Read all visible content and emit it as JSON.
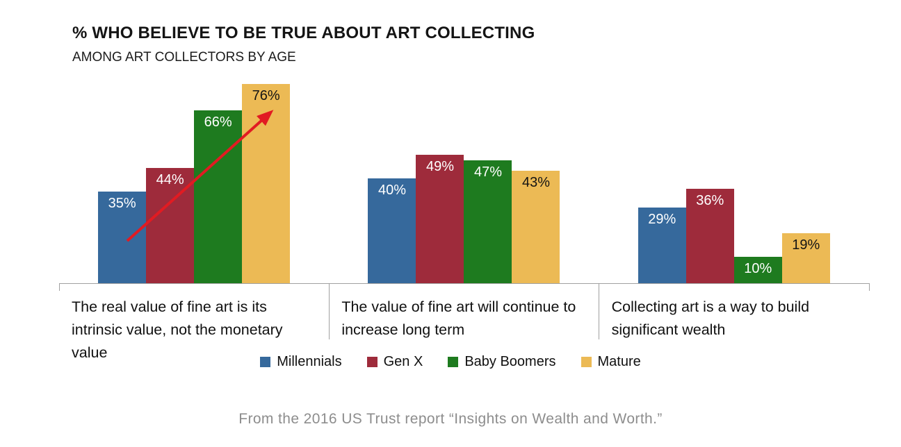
{
  "title": "% WHO BELIEVE TO BE TRUE ABOUT ART COLLECTING",
  "subtitle": "AMONG ART COLLECTORS BY AGE",
  "caption": "From the 2016 US Trust report “Insights on Wealth and Worth.”",
  "colors": {
    "axis": "#a0a0a0",
    "arrow": "#e11b22",
    "millennials_blue": "#36699c",
    "gen_x_red": "#9e2b3b",
    "baby_boomers_green": "#1e7b1f",
    "mature_gold": "#ecba55"
  },
  "chart_data": {
    "type": "bar",
    "title": "% WHO BELIEVE TO BE TRUE ABOUT ART COLLECTING",
    "subtitle": "AMONG ART COLLECTORS BY AGE",
    "categories": [
      "The real value of fine art is its intrinsic value, not the monetary value",
      "The value of fine art will continue to increase long term",
      "Collecting art is a way to build significant wealth"
    ],
    "series": [
      {
        "name": "Millennials",
        "color": "#36699c",
        "label_color": "#ffffff",
        "values": [
          35,
          40,
          29
        ]
      },
      {
        "name": "Gen X",
        "color": "#9e2b3b",
        "label_color": "#ffffff",
        "values": [
          44,
          49,
          36
        ]
      },
      {
        "name": "Baby Boomers",
        "color": "#1e7b1f",
        "label_color": "#ffffff",
        "values": [
          66,
          47,
          10
        ]
      },
      {
        "name": "Mature",
        "color": "#ecba55",
        "label_color": "#141414",
        "values": [
          76,
          43,
          19
        ]
      }
    ],
    "value_suffix": "%",
    "ylim": [
      0,
      80
    ],
    "grid": false,
    "legend_position": "bottom",
    "annotations": [
      {
        "type": "arrow",
        "category": "The real value of fine art is its intrinsic value, not the monetary value",
        "direction": "up-right",
        "color": "#e11b22",
        "meaning": "belief rises with age from 35% to 76%"
      }
    ]
  }
}
